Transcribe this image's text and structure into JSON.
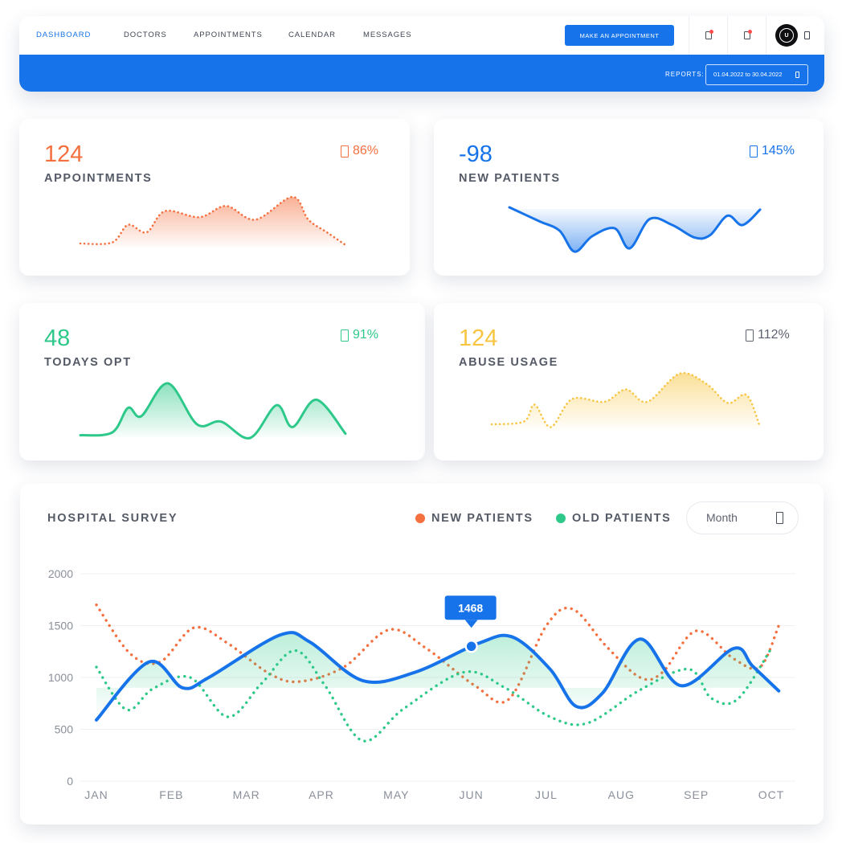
{
  "nav": {
    "items": [
      {
        "label": "DASHBOARD",
        "active": true
      },
      {
        "label": "DOCTORS",
        "active": false
      },
      {
        "label": "APPOINTMENTS",
        "active": false
      },
      {
        "label": "CALENDAR",
        "active": false
      },
      {
        "label": "MESSAGES",
        "active": false
      }
    ],
    "cta_label": "MAKE AN APPOINTMENT",
    "icons": [
      "file-alert-icon",
      "clipboard-alert-icon",
      "avatar",
      "menu-icon"
    ]
  },
  "reports": {
    "label": "REPORTS:",
    "date_range": "01.04.2022 to 30.04.2022"
  },
  "kpis": [
    {
      "value": "124",
      "label": "APPOINTMENTS",
      "delta": "86%",
      "color": "#f5703f",
      "style": "dotted"
    },
    {
      "value": "-98",
      "label": "NEW PATIENTS",
      "delta": "145%",
      "color": "#1673ea",
      "style": "solid"
    },
    {
      "value": "48",
      "label": "TODAYS OPT",
      "delta": "91%",
      "color": "#2ec98a",
      "style": "solid"
    },
    {
      "value": "124",
      "label": "ABUSE USAGE",
      "delta": "112%",
      "color": "#f7c542",
      "delta_color": "#5d6270",
      "style": "dotted"
    }
  ],
  "survey": {
    "title": "HOSPITAL SURVEY",
    "legend": [
      {
        "name": "NEW PATIENTS",
        "color": "#f5703f"
      },
      {
        "name": "OLD PATIENTS",
        "color": "#2ec98a"
      }
    ],
    "period": "Month",
    "tooltip": "1468"
  },
  "chart_data": {
    "type": "line",
    "title": "HOSPITAL SURVEY",
    "xlabel": "",
    "ylabel": "",
    "ylim": [
      0,
      2000
    ],
    "y_ticks": [
      0,
      500,
      1000,
      1500,
      2000
    ],
    "categories": [
      "JAN",
      "FEB",
      "MAR",
      "APR",
      "MAY",
      "JUN",
      "JUL",
      "AUG",
      "SEP",
      "OCT"
    ],
    "grid": true,
    "legend_position": "top-right",
    "series": [
      {
        "name": "NEW PATIENTS",
        "style": "dotted",
        "color": "#f5703f",
        "points": [
          [
            0,
            1700
          ],
          [
            0.45,
            1230
          ],
          [
            0.85,
            1150
          ],
          [
            1.3,
            1480
          ],
          [
            1.75,
            1330
          ],
          [
            2.3,
            1040
          ],
          [
            2.7,
            960
          ],
          [
            3.3,
            1100
          ],
          [
            3.9,
            1460
          ],
          [
            4.4,
            1280
          ],
          [
            5.05,
            920
          ],
          [
            5.5,
            790
          ],
          [
            6.0,
            1500
          ],
          [
            6.35,
            1660
          ],
          [
            6.8,
            1300
          ],
          [
            7.25,
            1000
          ],
          [
            7.55,
            1050
          ],
          [
            8.0,
            1450
          ],
          [
            8.5,
            1180
          ],
          [
            8.85,
            1100
          ],
          [
            9.1,
            1500
          ]
        ]
      },
      {
        "name": "OLD PATIENTS",
        "style": "dotted",
        "color": "#2ec98a",
        "points": [
          [
            0,
            1100
          ],
          [
            0.4,
            690
          ],
          [
            0.75,
            890
          ],
          [
            1.25,
            1000
          ],
          [
            1.75,
            620
          ],
          [
            2.2,
            940
          ],
          [
            2.65,
            1260
          ],
          [
            3.05,
            920
          ],
          [
            3.55,
            390
          ],
          [
            4.1,
            700
          ],
          [
            4.9,
            1050
          ],
          [
            5.45,
            900
          ],
          [
            6.05,
            620
          ],
          [
            6.55,
            560
          ],
          [
            7.25,
            880
          ],
          [
            7.9,
            1080
          ],
          [
            8.2,
            800
          ],
          [
            8.55,
            790
          ],
          [
            9.0,
            1280
          ]
        ]
      },
      {
        "name": "",
        "style": "solid",
        "color": "#1673ea",
        "points": [
          [
            0,
            590
          ],
          [
            0.7,
            1150
          ],
          [
            1.15,
            900
          ],
          [
            1.5,
            1000
          ],
          [
            2.45,
            1410
          ],
          [
            2.85,
            1340
          ],
          [
            3.55,
            970
          ],
          [
            4.25,
            1050
          ],
          [
            5.1,
            1330
          ],
          [
            5.55,
            1390
          ],
          [
            6.05,
            1080
          ],
          [
            6.4,
            720
          ],
          [
            6.75,
            850
          ],
          [
            7.25,
            1370
          ],
          [
            7.8,
            920
          ],
          [
            8.5,
            1280
          ],
          [
            8.75,
            1110
          ],
          [
            9.1,
            870
          ]
        ]
      }
    ],
    "highlight": {
      "category": "JUN",
      "x": 5.0,
      "y": 1300,
      "label": "1468"
    }
  },
  "sparklines": [
    {
      "points": [
        [
          0,
          0.08
        ],
        [
          0.12,
          0.1
        ],
        [
          0.18,
          0.45
        ],
        [
          0.25,
          0.3
        ],
        [
          0.32,
          0.72
        ],
        [
          0.45,
          0.6
        ],
        [
          0.55,
          0.82
        ],
        [
          0.66,
          0.55
        ],
        [
          0.8,
          1.0
        ],
        [
          0.86,
          0.55
        ],
        [
          0.93,
          0.3
        ],
        [
          1,
          0.05
        ]
      ]
    },
    {
      "points": [
        [
          0,
          1.0
        ],
        [
          0.12,
          0.7
        ],
        [
          0.2,
          0.5
        ],
        [
          0.26,
          0.05
        ],
        [
          0.33,
          0.38
        ],
        [
          0.42,
          0.55
        ],
        [
          0.48,
          0.12
        ],
        [
          0.56,
          0.75
        ],
        [
          0.65,
          0.62
        ],
        [
          0.74,
          0.35
        ],
        [
          0.8,
          0.4
        ],
        [
          0.87,
          0.82
        ],
        [
          0.93,
          0.62
        ],
        [
          1,
          0.95
        ]
      ]
    },
    {
      "points": [
        [
          0,
          0.05
        ],
        [
          0.12,
          0.1
        ],
        [
          0.18,
          0.55
        ],
        [
          0.23,
          0.4
        ],
        [
          0.33,
          1.0
        ],
        [
          0.44,
          0.25
        ],
        [
          0.53,
          0.3
        ],
        [
          0.64,
          0.0
        ],
        [
          0.74,
          0.6
        ],
        [
          0.8,
          0.2
        ],
        [
          0.89,
          0.7
        ],
        [
          1,
          0.08
        ]
      ]
    },
    {
      "points": [
        [
          0,
          0.1
        ],
        [
          0.12,
          0.15
        ],
        [
          0.16,
          0.45
        ],
        [
          0.22,
          0.05
        ],
        [
          0.3,
          0.55
        ],
        [
          0.42,
          0.5
        ],
        [
          0.5,
          0.72
        ],
        [
          0.58,
          0.5
        ],
        [
          0.7,
          1.0
        ],
        [
          0.8,
          0.82
        ],
        [
          0.88,
          0.48
        ],
        [
          0.95,
          0.62
        ],
        [
          1,
          0.05
        ]
      ]
    }
  ]
}
